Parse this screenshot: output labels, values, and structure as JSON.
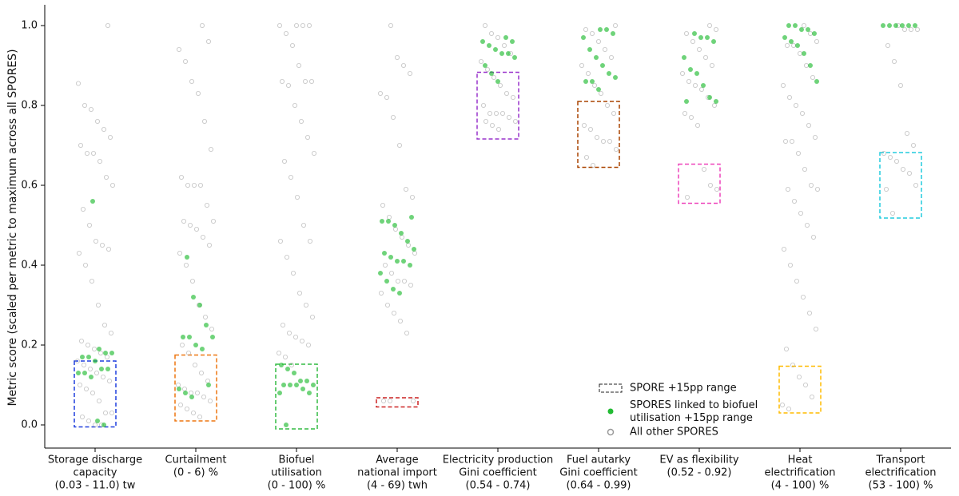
{
  "chart_data": {
    "type": "strip",
    "ylabel": "Metric score (scaled per metric to maximum across all SPORES)",
    "categories": [
      [
        "Storage discharge",
        "capacity",
        "(0.03 - 11.0) tw"
      ],
      [
        "Curtailment",
        "(0 - 6) %"
      ],
      [
        "Biofuel",
        "utilisation",
        "(0 - 100) %"
      ],
      [
        "Average",
        "national import",
        "(4 - 69) twh"
      ],
      [
        "Electricity production",
        "Gini coefficient",
        "(0.54 - 0.74)"
      ],
      [
        "Fuel autarky",
        "Gini coefficient",
        "(0.64 - 0.99)"
      ],
      [
        "EV as flexibility",
        "(0.52 - 0.92)"
      ],
      [
        "Heat",
        "electrification",
        "(4 - 100) %"
      ],
      [
        "Transport",
        "electrification",
        "(53 - 100) %"
      ]
    ],
    "ylim": [
      -0.058,
      1.052
    ],
    "yticks": [
      {
        "value": 0,
        "label": "0.0"
      },
      0.2,
      0.4,
      0.6,
      0.8,
      {
        "value": 1,
        "label": "1.0"
      }
    ],
    "legend": "lower right",
    "series": [
      {
        "name": "SPORE +15pp range",
        "color": "#222222",
        "colors": [
          "#1f3fdd",
          "#ee7711",
          "#33bb44",
          "#cc2222",
          "#9933cc",
          "#aa4400",
          "#ee44bb",
          "#ffbb00",
          "#22ccdd"
        ],
        "values": [
          [
            -0.005,
            0.16
          ],
          [
            0.01,
            0.175
          ],
          [
            -0.01,
            0.152
          ],
          [
            0.045,
            0.068
          ],
          [
            0.716,
            0.883
          ],
          [
            0.645,
            0.81
          ],
          [
            0.555,
            0.653
          ],
          [
            0.03,
            0.147
          ],
          [
            0.518,
            0.682
          ]
        ]
      },
      {
        "name": "SPORES linked to biofuel utilisation +15pp range",
        "color": "#22bb33",
        "values": [
          [
            0.56,
            0.19,
            0.18,
            0.18,
            0.17,
            0.17,
            0.16,
            0.14,
            0.14,
            0.13,
            0.13,
            0.12,
            0.01,
            0.0
          ],
          [
            0.42,
            0.32,
            0.3,
            0.25,
            0.22,
            0.22,
            0.22,
            0.2,
            0.19,
            0.1,
            0.09,
            0.08,
            0.07
          ],
          [
            0.15,
            0.14,
            0.13,
            0.11,
            0.11,
            0.1,
            0.1,
            0.1,
            0.1,
            0.09,
            0.08,
            0.08,
            0.0
          ],
          [
            0.52,
            0.51,
            0.51,
            0.5,
            0.48,
            0.46,
            0.44,
            0.43,
            0.42,
            0.41,
            0.41,
            0.4,
            0.38,
            0.36,
            0.34,
            0.33
          ],
          [
            0.97,
            0.96,
            0.96,
            0.95,
            0.94,
            0.93,
            0.93,
            0.92,
            0.9,
            0.88,
            0.86
          ],
          [
            0.99,
            0.99,
            0.98,
            0.97,
            0.94,
            0.92,
            0.9,
            0.88,
            0.87,
            0.86,
            0.86,
            0.84
          ],
          [
            0.98,
            0.97,
            0.97,
            0.96,
            0.92,
            0.89,
            0.88,
            0.85,
            0.82,
            0.81,
            0.81
          ],
          [
            1.0,
            1.0,
            0.99,
            0.99,
            0.98,
            0.97,
            0.96,
            0.95,
            0.93,
            0.9,
            0.86
          ],
          [
            1.0,
            1.0,
            1.0,
            1.0,
            1.0,
            1.0
          ]
        ]
      },
      {
        "name": "All other SPORES",
        "color": "#999999",
        "values": [
          [
            1.0,
            0.855,
            0.8,
            0.79,
            0.76,
            0.74,
            0.72,
            0.7,
            0.68,
            0.68,
            0.66,
            0.62,
            0.6,
            0.54,
            0.5,
            0.46,
            0.45,
            0.44,
            0.43,
            0.4,
            0.36,
            0.3,
            0.25,
            0.23,
            0.21,
            0.2,
            0.19,
            0.18,
            0.17,
            0.16,
            0.15,
            0.14,
            0.13,
            0.12,
            0.11,
            0.1,
            0.09,
            0.08,
            0.06,
            0.03,
            0.03,
            0.02,
            0.01,
            0.0,
            0.0
          ],
          [
            1.0,
            0.96,
            0.94,
            0.91,
            0.86,
            0.83,
            0.76,
            0.69,
            0.62,
            0.6,
            0.6,
            0.6,
            0.55,
            0.51,
            0.51,
            0.5,
            0.49,
            0.47,
            0.45,
            0.43,
            0.4,
            0.36,
            0.3,
            0.27,
            0.24,
            0.2,
            0.18,
            0.15,
            0.13,
            0.11,
            0.1,
            0.09,
            0.08,
            0.08,
            0.07,
            0.06,
            0.05,
            0.04,
            0.03,
            0.02
          ],
          [
            1.0,
            1.0,
            1.0,
            1.0,
            0.98,
            0.95,
            0.9,
            0.86,
            0.86,
            0.86,
            0.85,
            0.8,
            0.76,
            0.72,
            0.68,
            0.66,
            0.62,
            0.57,
            0.5,
            0.46,
            0.46,
            0.42,
            0.38,
            0.33,
            0.3,
            0.27,
            0.25,
            0.23,
            0.22,
            0.21,
            0.2,
            0.18,
            0.17,
            0.15
          ],
          [
            1.0,
            0.92,
            0.9,
            0.88,
            0.83,
            0.82,
            0.77,
            0.7,
            0.59,
            0.57,
            0.55,
            0.52,
            0.49,
            0.47,
            0.45,
            0.43,
            0.4,
            0.38,
            0.36,
            0.36,
            0.35,
            0.33,
            0.3,
            0.28,
            0.26,
            0.23,
            0.06,
            0.06,
            0.06
          ],
          [
            1.0,
            0.98,
            0.97,
            0.95,
            0.93,
            0.91,
            0.89,
            0.87,
            0.85,
            0.83,
            0.82,
            0.8,
            0.78,
            0.78,
            0.78,
            0.77,
            0.76,
            0.76,
            0.75,
            0.74
          ],
          [
            1.0,
            0.99,
            0.98,
            0.96,
            0.94,
            0.92,
            0.9,
            0.88,
            0.85,
            0.83,
            0.8,
            0.78,
            0.75,
            0.74,
            0.72,
            0.71,
            0.71,
            0.69,
            0.67,
            0.65
          ],
          [
            1.0,
            0.99,
            0.98,
            0.96,
            0.94,
            0.92,
            0.9,
            0.88,
            0.86,
            0.85,
            0.84,
            0.82,
            0.8,
            0.78,
            0.77,
            0.75,
            0.64,
            0.6,
            0.59,
            0.57
          ],
          [
            1.0,
            0.98,
            0.96,
            0.95,
            0.95,
            0.93,
            0.9,
            0.87,
            0.85,
            0.82,
            0.8,
            0.78,
            0.75,
            0.72,
            0.71,
            0.71,
            0.68,
            0.64,
            0.6,
            0.59,
            0.59,
            0.56,
            0.53,
            0.5,
            0.47,
            0.44,
            0.4,
            0.36,
            0.32,
            0.28,
            0.24,
            0.19,
            0.15,
            0.12,
            0.1,
            0.07,
            0.05,
            0.04
          ],
          [
            1.0,
            0.99,
            0.99,
            0.99,
            0.95,
            0.91,
            0.85,
            0.73,
            0.7,
            0.68,
            0.67,
            0.66,
            0.64,
            0.63,
            0.6,
            0.59,
            0.53
          ]
        ]
      }
    ]
  }
}
